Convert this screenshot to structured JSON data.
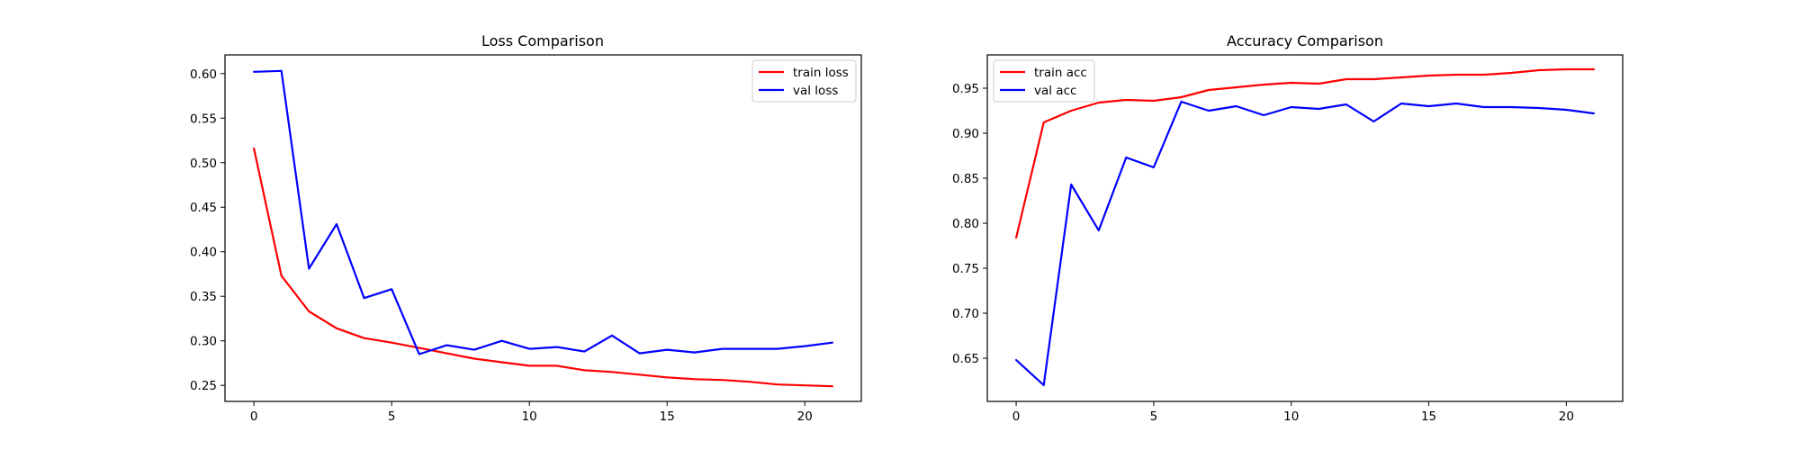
{
  "chart_data": [
    {
      "type": "line",
      "title": "Loss Comparison",
      "xlabel": "",
      "ylabel": "",
      "xlim": [
        -1.05,
        22.05
      ],
      "ylim": [
        0.232,
        0.621
      ],
      "x_ticks": [
        0,
        5,
        10,
        15,
        20
      ],
      "y_ticks": [
        0.25,
        0.3,
        0.35,
        0.4,
        0.45,
        0.5,
        0.55,
        0.6
      ],
      "grid": false,
      "legend_position": "top-right",
      "x": [
        0,
        1,
        2,
        3,
        4,
        5,
        6,
        7,
        8,
        9,
        10,
        11,
        12,
        13,
        14,
        15,
        16,
        17,
        18,
        19,
        20,
        21
      ],
      "series": [
        {
          "name": "train loss",
          "color": "#ff0000",
          "values": [
            0.516,
            0.373,
            0.333,
            0.314,
            0.303,
            0.298,
            0.292,
            0.286,
            0.28,
            0.276,
            0.272,
            0.272,
            0.267,
            0.265,
            0.262,
            0.259,
            0.257,
            0.256,
            0.254,
            0.251,
            0.25,
            0.249
          ]
        },
        {
          "name": "val loss",
          "color": "#0000ff",
          "values": [
            0.602,
            0.603,
            0.381,
            0.431,
            0.348,
            0.358,
            0.285,
            0.295,
            0.29,
            0.3,
            0.291,
            0.293,
            0.288,
            0.306,
            0.286,
            0.29,
            0.287,
            0.291,
            0.291,
            0.291,
            0.294,
            0.298
          ]
        }
      ]
    },
    {
      "type": "line",
      "title": "Accuracy Comparison",
      "xlabel": "",
      "ylabel": "",
      "xlim": [
        -1.05,
        22.05
      ],
      "ylim": [
        0.602,
        0.987
      ],
      "x_ticks": [
        0,
        5,
        10,
        15,
        20
      ],
      "y_ticks": [
        0.65,
        0.7,
        0.75,
        0.8,
        0.85,
        0.9,
        0.95
      ],
      "grid": false,
      "legend_position": "top-left",
      "x": [
        0,
        1,
        2,
        3,
        4,
        5,
        6,
        7,
        8,
        9,
        10,
        11,
        12,
        13,
        14,
        15,
        16,
        17,
        18,
        19,
        20,
        21
      ],
      "series": [
        {
          "name": "train acc",
          "color": "#ff0000",
          "values": [
            0.784,
            0.912,
            0.925,
            0.934,
            0.937,
            0.936,
            0.94,
            0.948,
            0.951,
            0.954,
            0.956,
            0.955,
            0.96,
            0.96,
            0.962,
            0.964,
            0.965,
            0.965,
            0.967,
            0.97,
            0.971,
            0.971
          ]
        },
        {
          "name": "val acc",
          "color": "#0000ff",
          "values": [
            0.648,
            0.62,
            0.843,
            0.792,
            0.873,
            0.862,
            0.935,
            0.925,
            0.93,
            0.92,
            0.929,
            0.927,
            0.932,
            0.913,
            0.933,
            0.93,
            0.933,
            0.929,
            0.929,
            0.928,
            0.926,
            0.922
          ]
        }
      ]
    }
  ]
}
